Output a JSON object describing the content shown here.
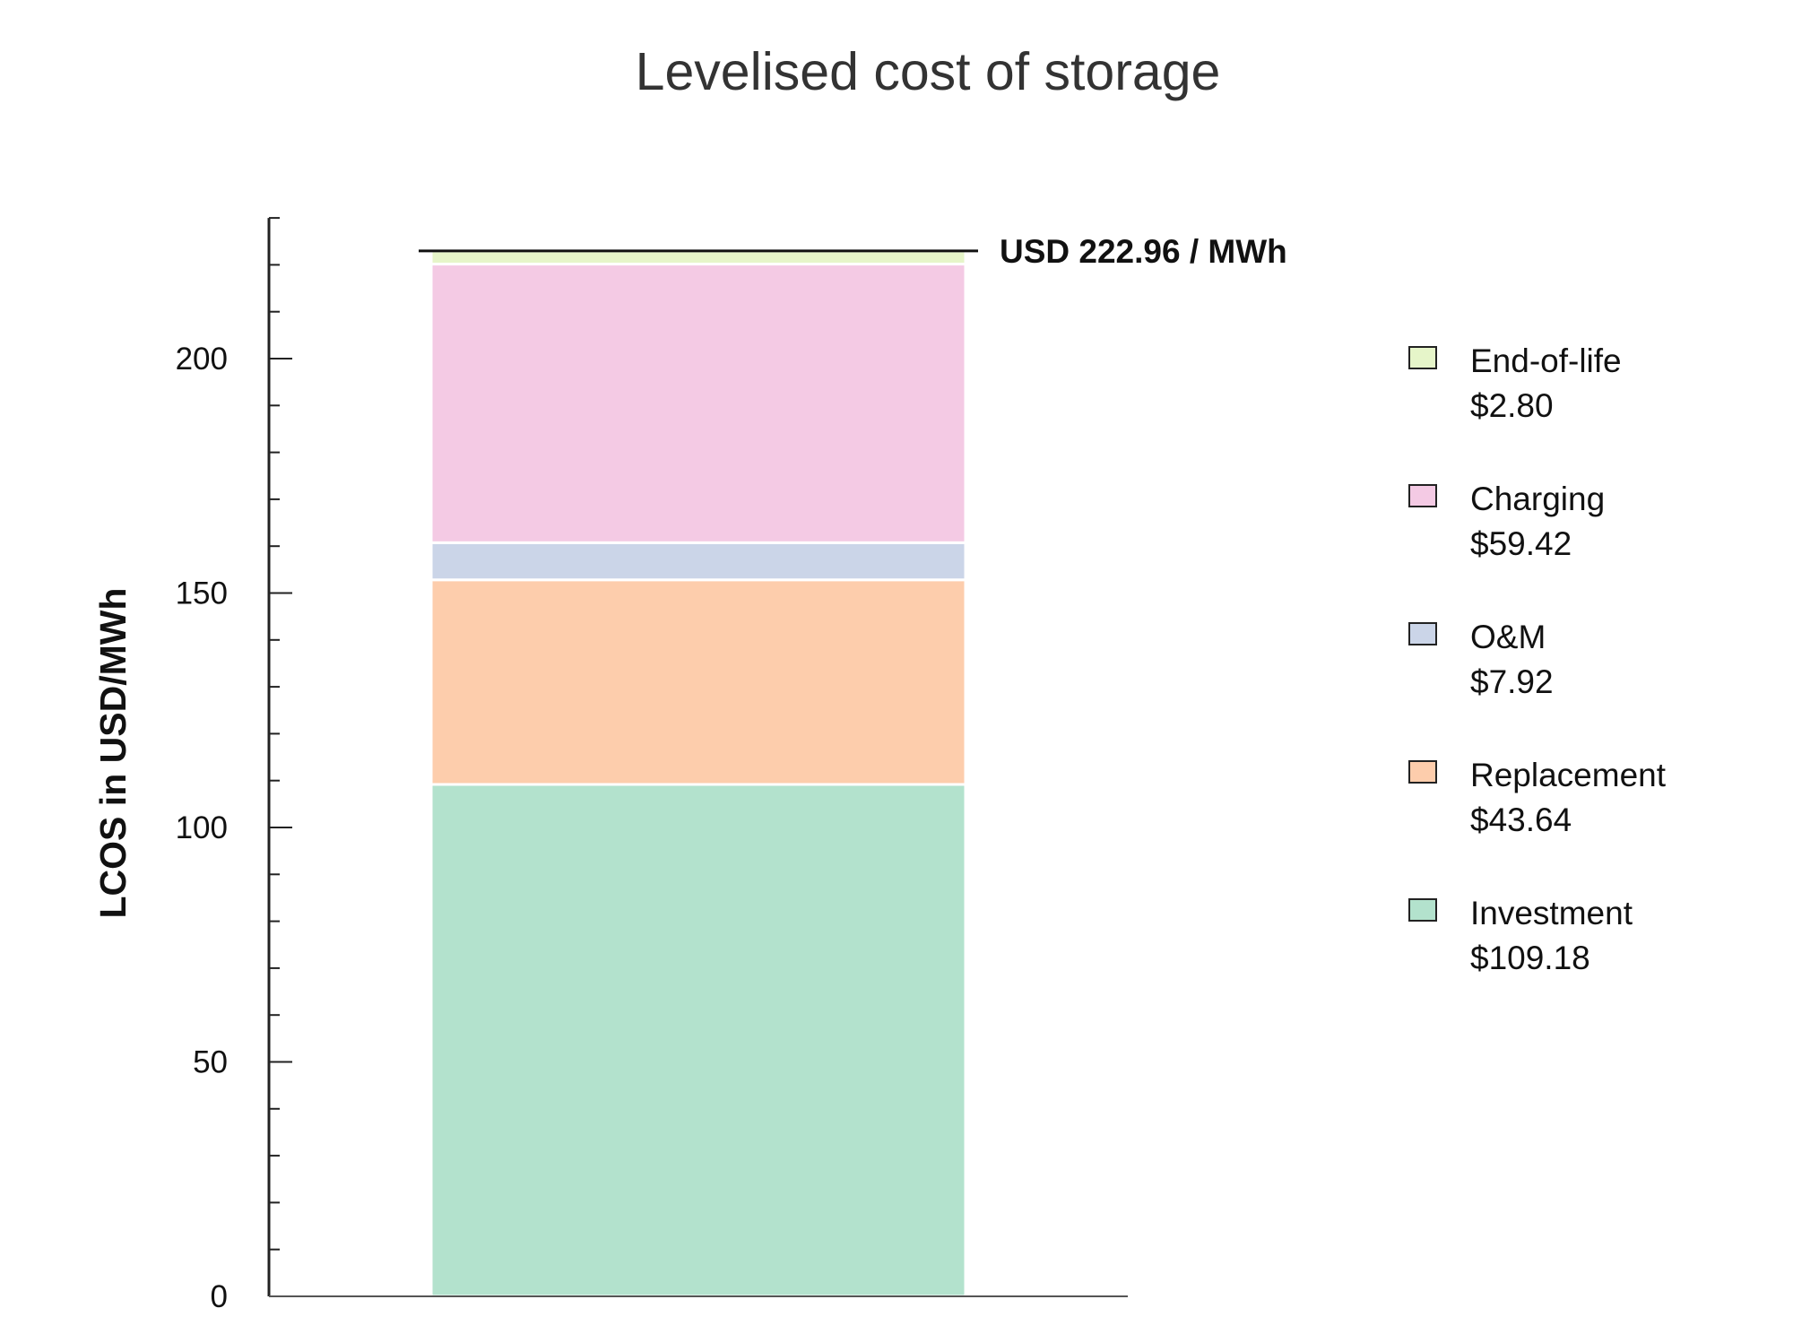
{
  "chart_data": {
    "type": "bar",
    "stacked": true,
    "title": "Levelised cost of storage",
    "xlabel": "",
    "ylabel": "LCOS in USD/MWh",
    "ylim": [
      0,
      230
    ],
    "yticks": [
      0,
      50,
      100,
      150,
      200
    ],
    "minor_tick_step": 10,
    "grid": false,
    "legend_position": "right",
    "total_label": "USD 222.96 / MWh",
    "total": 222.96,
    "series": [
      {
        "name": "Investment",
        "value": 109.18,
        "value_label": "$109.18",
        "color": "#b3e2cd"
      },
      {
        "name": "Replacement",
        "value": 43.64,
        "value_label": "$43.64",
        "color": "#fdcdac"
      },
      {
        "name": "O&M",
        "value": 7.92,
        "value_label": "$7.92",
        "color": "#cbd5e8"
      },
      {
        "name": "Charging",
        "value": 59.42,
        "value_label": "$59.42",
        "color": "#f4cae4"
      },
      {
        "name": "End-of-life",
        "value": 2.8,
        "value_label": "$2.80",
        "color": "#e6f5c9"
      }
    ]
  }
}
